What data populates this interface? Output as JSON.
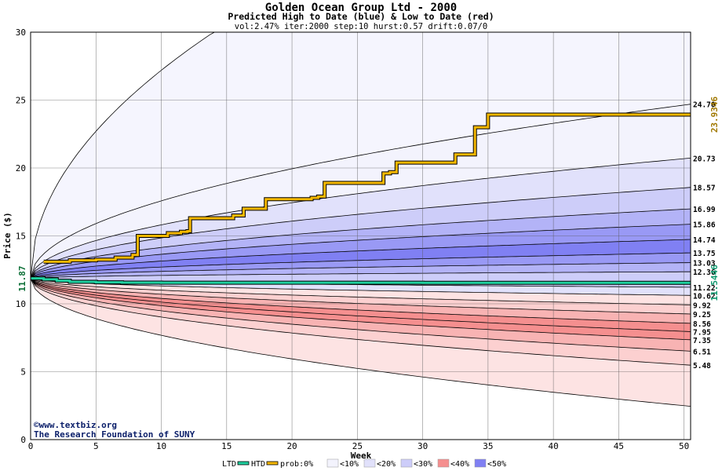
{
  "chart_data": {
    "type": "area",
    "title": "Golden Ocean Group Ltd - 2000",
    "subtitle": "Predicted High to Date (blue) &  Low to Date (red)",
    "params": "vol:2.47% iter:2000 step:10 hurst:0.57 drift:0.07/0",
    "xlabel": "Week",
    "ylabel": "Price ($)",
    "xlim": [
      0,
      50.5
    ],
    "ylim": [
      0,
      30
    ],
    "xticks": [
      0,
      5,
      10,
      15,
      20,
      25,
      30,
      35,
      40,
      45,
      50
    ],
    "yticks": [
      0,
      5,
      10,
      15,
      20,
      25,
      30
    ],
    "grid": true,
    "start_price": 11.87,
    "start_label": "11.87",
    "bands": [
      {
        "end": 24.7,
        "label": "24.70",
        "color": "#f3f3fd"
      },
      {
        "end": 20.73,
        "label": "20.73",
        "color": "#e1e1fb"
      },
      {
        "end": 18.57,
        "label": "18.57",
        "color": "#cdcdf9"
      },
      {
        "end": 16.99,
        "label": "16.99",
        "color": "#b3b3f7"
      },
      {
        "end": 15.86,
        "label": "15.86",
        "color": "#9999f5"
      },
      {
        "end": 14.74,
        "label": "14.74",
        "color": "#8080f3"
      },
      {
        "end": 13.75,
        "label": "13.75",
        "color": "#9999f5"
      },
      {
        "end": 13.03,
        "label": "13.03",
        "color": "#b3b3f7"
      },
      {
        "end": 12.36,
        "label": "12.36",
        "color": "#cdcdf9"
      },
      {
        "end": 11.22,
        "label": "11.22",
        "color": "#e1e1fb"
      },
      {
        "end": 10.62,
        "label": "10.62",
        "color": "#fde3e3"
      },
      {
        "end": 9.92,
        "label": "9.92",
        "color": "#fcd0d0"
      },
      {
        "end": 9.25,
        "label": "9.25",
        "color": "#f8b3b3"
      },
      {
        "end": 8.56,
        "label": "8.56",
        "color": "#f58f8f"
      },
      {
        "end": 7.95,
        "label": "7.95",
        "color": "#f58f8f"
      },
      {
        "end": 7.35,
        "label": "7.35",
        "color": "#f8b3b3"
      },
      {
        "end": 6.51,
        "label": "6.51",
        "color": "#fcd0d0"
      },
      {
        "end": 5.48,
        "label": "5.48",
        "color": "#fde3e3"
      },
      {
        "end": 2.45,
        "label": "",
        "color": "#fdf3f3"
      }
    ],
    "upper_envelope_reaches_30_week": 14,
    "series": [
      {
        "name": "HTD",
        "color": "#f5b800",
        "end_label": "23.9346",
        "x": [
          1,
          3,
          5,
          6.5,
          7.8,
          8.2,
          10,
          10.5,
          11.5,
          12,
          12.2,
          15.5,
          16,
          16.3,
          18,
          21,
          21.5,
          22,
          22.5,
          26.5,
          27,
          27.5,
          28,
          32,
          32.5,
          33,
          34,
          34.5,
          35,
          50.5
        ],
        "y": [
          13.1,
          13.2,
          13.25,
          13.4,
          13.6,
          15.0,
          15.0,
          15.2,
          15.3,
          15.35,
          16.3,
          16.5,
          16.5,
          17.0,
          17.7,
          17.7,
          17.8,
          17.9,
          18.9,
          18.9,
          19.6,
          19.7,
          20.4,
          20.4,
          21.0,
          21.0,
          23.0,
          23.0,
          23.93,
          23.93
        ]
      },
      {
        "name": "LTD",
        "color": "#20d0a0",
        "end_label": "11.5446",
        "x": [
          0,
          1,
          2,
          3,
          5,
          7,
          10,
          20,
          30,
          40,
          50.5
        ],
        "y": [
          11.87,
          11.8,
          11.7,
          11.62,
          11.58,
          11.56,
          11.55,
          11.55,
          11.545,
          11.545,
          11.5446
        ]
      }
    ],
    "legend": {
      "ltd": "LTD",
      "htd": "HTD",
      "prob_prefix": "prob:0%",
      "items": [
        {
          "label": "<10%",
          "color": "#f3f3fd"
        },
        {
          "label": "<20%",
          "color": "#e1e1fb"
        },
        {
          "label": "<30%",
          "color": "#cdcdf9"
        },
        {
          "label": "<40%",
          "color": "#f58f8f"
        },
        {
          "label": "<50%",
          "color": "#8080f3"
        }
      ]
    },
    "watermark": [
      "©www.textbiz.org",
      "The Research Foundation of SUNY"
    ]
  }
}
